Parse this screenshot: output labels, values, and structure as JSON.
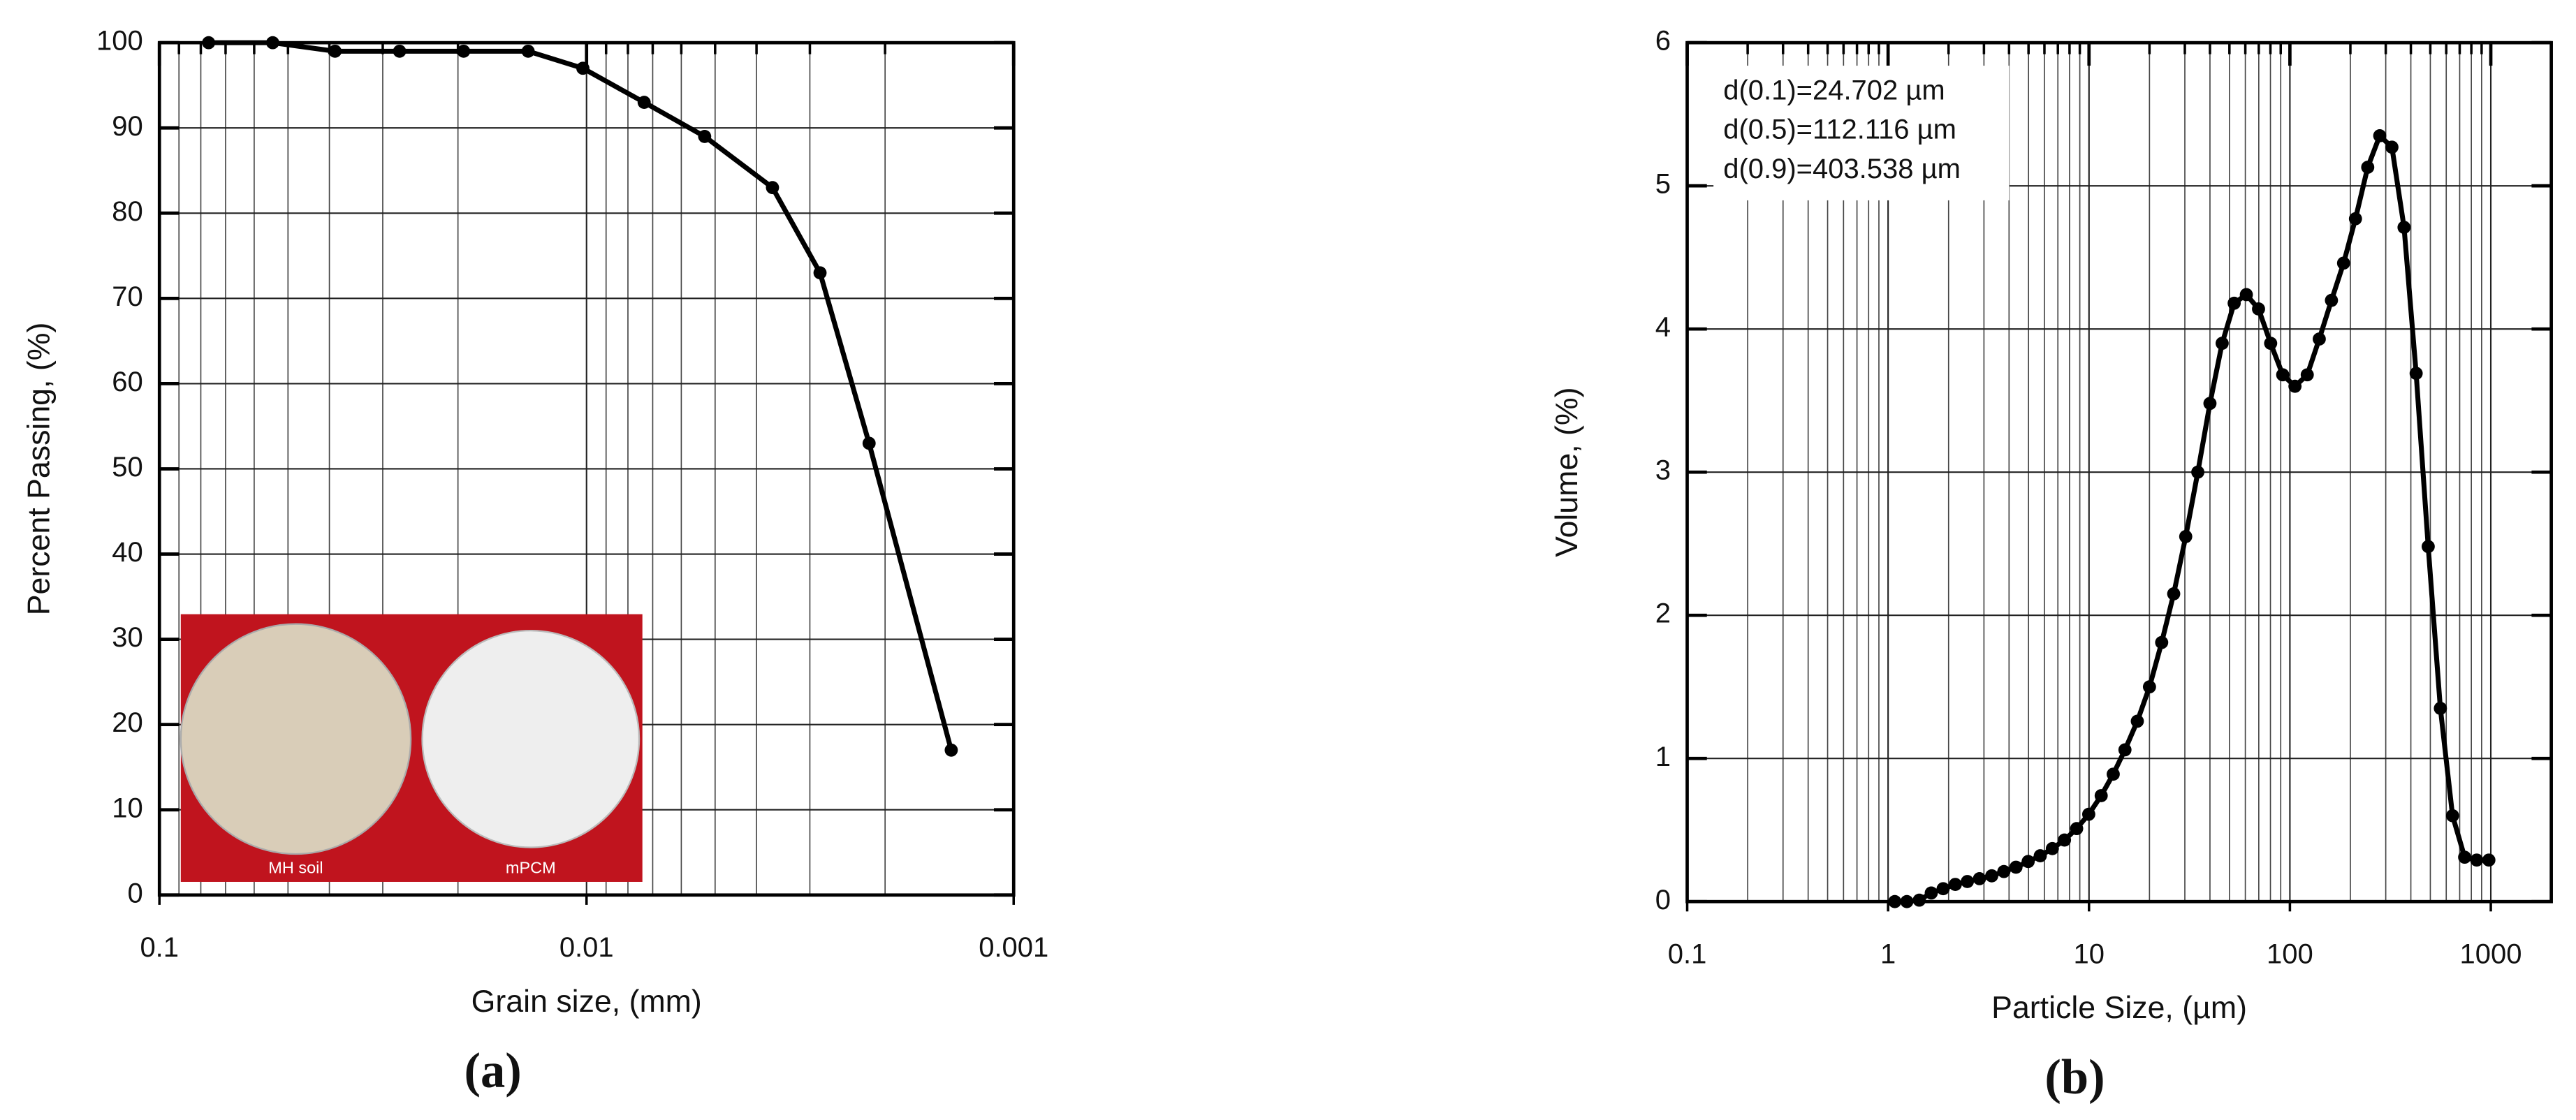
{
  "chart_data": [
    {
      "type": "line",
      "panel_label": "(a)",
      "xlabel": "Grain size, (mm)",
      "ylabel": "Percent Passing, (%)",
      "xscale": "log",
      "grid": true,
      "color": "#000000",
      "x": [
        0.0767,
        0.0543,
        0.0388,
        0.0274,
        0.0194,
        0.0137,
        0.0102,
        0.00733,
        0.00529,
        0.00367,
        0.00284,
        0.00218,
        0.0014
      ],
      "values": [
        100,
        100,
        99,
        99,
        99,
        99,
        97,
        93,
        89,
        83,
        73,
        53,
        17
      ],
      "xlim": [
        0.1,
        0.001
      ],
      "xticks": [
        0.1,
        0.01,
        0.001
      ],
      "xminorticks": [
        0.09,
        0.08,
        0.07,
        0.06,
        0.05,
        0.04,
        0.03,
        0.02,
        0.009,
        0.008,
        0.007,
        0.006,
        0.005,
        0.004,
        0.003,
        0.002
      ],
      "ylim": [
        0,
        100
      ],
      "yticks": [
        0,
        10,
        20,
        30,
        40,
        50,
        60,
        70,
        80,
        90,
        100
      ],
      "inset_labels": [
        "MH soil",
        "mPCM"
      ]
    },
    {
      "type": "line",
      "panel_label": "(b)",
      "xlabel": "Particle Size, (µm)",
      "ylabel": "Volume, (%)",
      "xscale": "log",
      "grid": true,
      "color": "#000000",
      "annotations": [
        "d(0.1)=24.702 µm",
        "d(0.5)=112.116 µm",
        "d(0.9)=403.538 µm"
      ],
      "x": [
        1.08,
        1.24,
        1.43,
        1.64,
        1.88,
        2.16,
        2.48,
        2.85,
        3.28,
        3.77,
        4.33,
        4.98,
        5.72,
        6.57,
        7.55,
        8.68,
        9.97,
        11.5,
        13.2,
        15.1,
        17.4,
        20.0,
        23.0,
        26.4,
        30.3,
        34.8,
        40.0,
        46.0,
        52.8,
        60.7,
        69.8,
        80.2,
        92.1,
        106,
        122,
        140,
        161,
        185,
        212,
        244,
        280,
        322,
        370,
        425,
        488,
        561,
        645,
        741,
        851,
        978
      ],
      "values": [
        0,
        0,
        0.01,
        0.06,
        0.09,
        0.12,
        0.14,
        0.16,
        0.18,
        0.21,
        0.24,
        0.28,
        0.32,
        0.37,
        0.43,
        0.51,
        0.61,
        0.74,
        0.89,
        1.06,
        1.26,
        1.5,
        1.81,
        2.15,
        2.55,
        3.0,
        3.48,
        3.9,
        4.18,
        4.24,
        4.14,
        3.9,
        3.68,
        3.6,
        3.68,
        3.93,
        4.2,
        4.46,
        4.77,
        5.13,
        5.35,
        5.27,
        4.71,
        3.69,
        2.48,
        1.35,
        0.6,
        0.31,
        0.29,
        0.29
      ],
      "xlim": [
        0.1,
        2000
      ],
      "xticks": [
        0.1,
        1,
        10,
        100,
        1000
      ],
      "xminorticks": [
        0.2,
        0.3,
        0.4,
        0.5,
        0.6,
        0.7,
        0.8,
        0.9,
        2,
        3,
        4,
        5,
        6,
        7,
        8,
        9,
        20,
        30,
        40,
        50,
        60,
        70,
        80,
        90,
        200,
        300,
        400,
        500,
        600,
        700,
        800,
        900
      ],
      "ylim": [
        0,
        6
      ],
      "yticks": [
        0,
        1,
        2,
        3,
        4,
        5,
        6
      ]
    }
  ]
}
